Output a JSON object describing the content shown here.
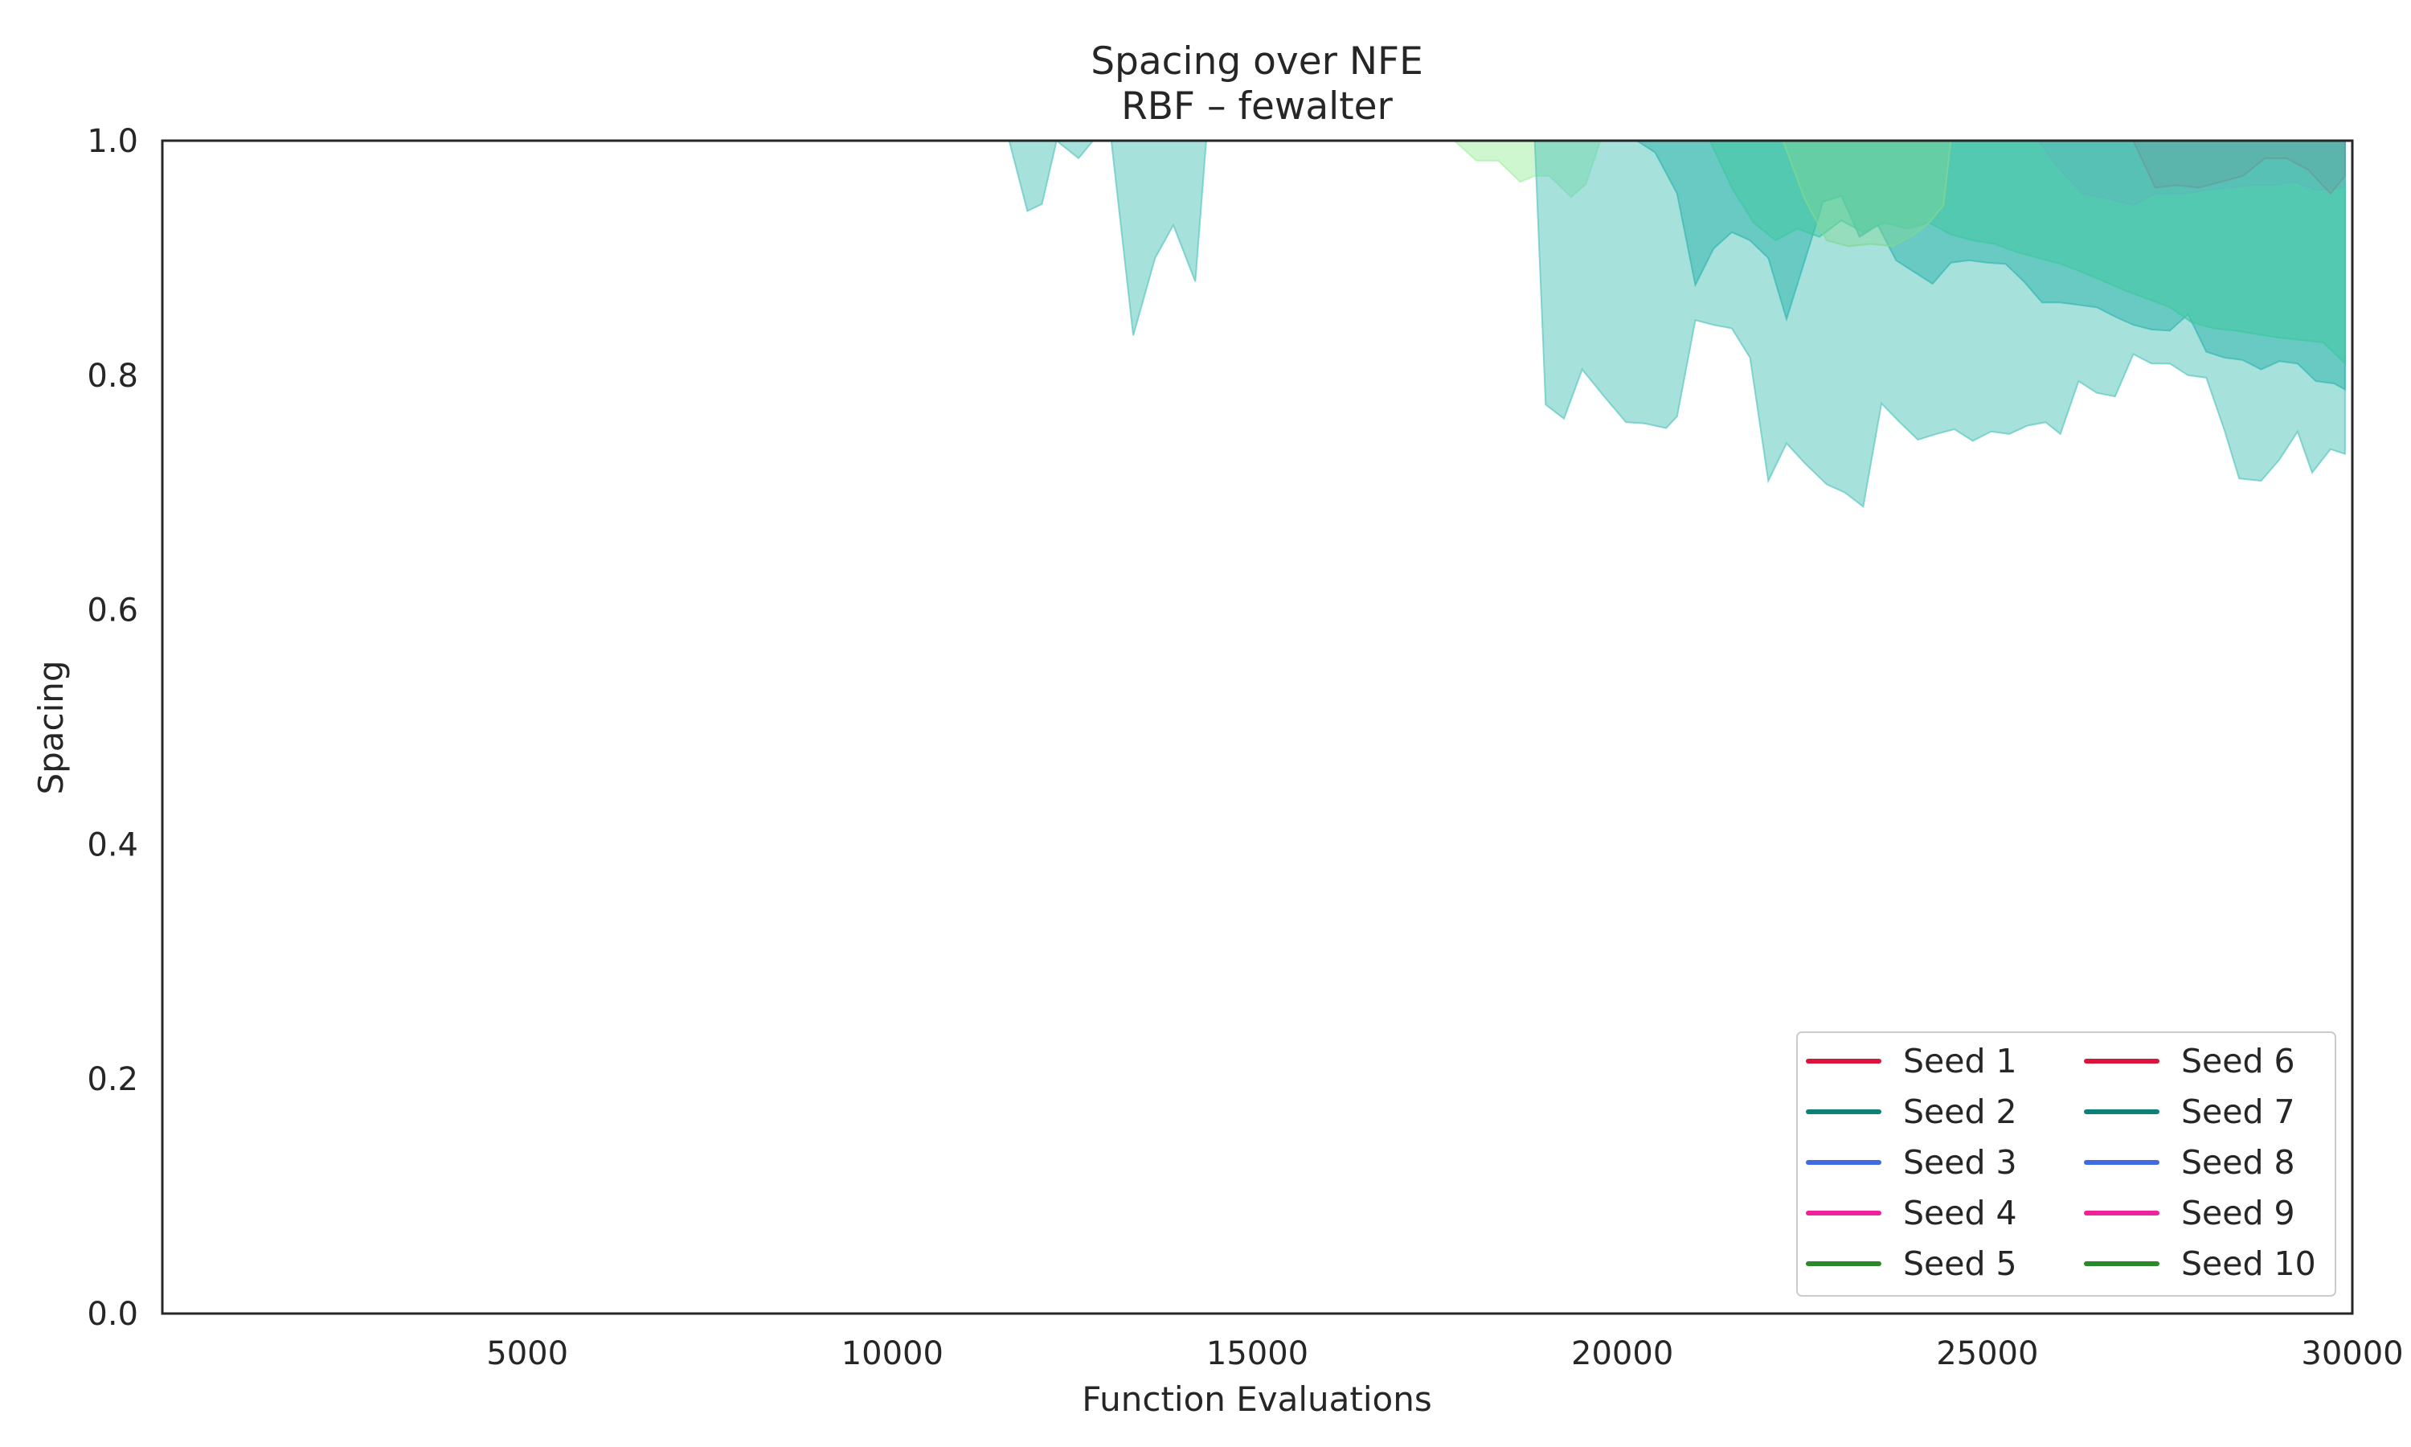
{
  "chart_data": {
    "type": "area",
    "title": "Spacing over NFE",
    "subtitle": "RBF – fewalter",
    "xlabel": "Function Evaluations",
    "ylabel": "Spacing",
    "xlim": [
      0,
      30000
    ],
    "ylim": [
      0.0,
      1.0
    ],
    "xticks": [
      5000,
      10000,
      15000,
      20000,
      25000,
      30000
    ],
    "yticks": [
      0.0,
      0.2,
      0.4,
      0.6,
      0.8,
      1.0
    ],
    "xtick_labels": [
      "5000",
      "10000",
      "15000",
      "20000",
      "25000",
      "30000"
    ],
    "ytick_labels": [
      "0.0",
      "0.2",
      "0.4",
      "0.6",
      "0.8",
      "1.0"
    ],
    "grid": false,
    "legend_position": "lower-right",
    "legend_columns": 2,
    "legend": [
      {
        "name": "Seed 1",
        "color": "#dc143c"
      },
      {
        "name": "Seed 2",
        "color": "#0f7f7a"
      },
      {
        "name": "Seed 3",
        "color": "#4169e1"
      },
      {
        "name": "Seed 4",
        "color": "#f0229a"
      },
      {
        "name": "Seed 5",
        "color": "#2a8a2a"
      },
      {
        "name": "Seed 6",
        "color": "#dc143c"
      },
      {
        "name": "Seed 7",
        "color": "#0f7f7a"
      },
      {
        "name": "Seed 8",
        "color": "#4169e1"
      },
      {
        "name": "Seed 9",
        "color": "#f0229a"
      },
      {
        "name": "Seed 10",
        "color": "#2a8a2a"
      }
    ],
    "bands": [
      {
        "color": "#5cc8c0",
        "opacity": 0.55,
        "upper": 1.0,
        "lower_x": [
          11600,
          11850,
          12050,
          12250,
          12550,
          12750,
          13000,
          13300,
          13600,
          13850,
          14150,
          14300
        ],
        "lower_y": [
          1.0,
          0.94,
          0.946,
          1.0,
          0.985,
          1.0,
          1.0,
          0.834,
          0.9,
          0.928,
          0.88,
          1.0
        ]
      },
      {
        "color": "#a8f0a8",
        "opacity": 0.55,
        "upper": 1.0,
        "lower_x": [
          17700,
          18000,
          18300,
          18600,
          18800,
          19000,
          19300,
          19500,
          19700
        ],
        "lower_y": [
          1.0,
          0.983,
          0.983,
          0.965,
          0.97,
          0.97,
          0.952,
          0.963,
          1.0
        ]
      },
      {
        "color": "#5cc8c0",
        "opacity": 0.55,
        "upper": 1.0,
        "lower_x": [
          18800,
          18950,
          19200,
          19450,
          19750,
          20050,
          20300,
          20600,
          20750,
          21000,
          21250,
          21500,
          21750,
          22000,
          22250,
          22500,
          22800,
          23050,
          23300,
          23550,
          23800,
          24050,
          24300,
          24550,
          24800,
          25050,
          25300,
          25550,
          25800,
          26000,
          26250,
          26500,
          26750,
          27000,
          27250,
          27500,
          27750,
          28000,
          28250,
          28450,
          28750,
          29000,
          29250,
          29450,
          29700,
          29900
        ],
        "lower_y": [
          1.0,
          0.775,
          0.763,
          0.805,
          0.782,
          0.76,
          0.759,
          0.755,
          0.765,
          0.847,
          0.843,
          0.84,
          0.815,
          0.71,
          0.742,
          0.725,
          0.707,
          0.7,
          0.688,
          0.776,
          0.76,
          0.745,
          0.75,
          0.754,
          0.744,
          0.752,
          0.75,
          0.757,
          0.76,
          0.75,
          0.795,
          0.785,
          0.782,
          0.818,
          0.81,
          0.81,
          0.8,
          0.798,
          0.753,
          0.712,
          0.71,
          0.728,
          0.752,
          0.717,
          0.737,
          0.733
        ]
      },
      {
        "color": "#36b8b0",
        "opacity": 0.55,
        "upper": 1.0,
        "lower_x": [
          20000,
          20200,
          20450,
          20750,
          21000,
          21250,
          21500,
          21750,
          22000,
          22250,
          22500,
          22750,
          23000,
          23250,
          23500,
          23750,
          24000,
          24250,
          24500,
          24750,
          25000,
          25250,
          25500,
          25750,
          26000,
          26250,
          26500,
          26750,
          27000,
          27250,
          27500,
          27750,
          28000,
          28250,
          28500,
          28750,
          29000,
          29250,
          29500,
          29750,
          29900
        ],
        "lower_y": [
          1.0,
          1.0,
          0.99,
          0.955,
          0.877,
          0.908,
          0.922,
          0.915,
          0.9,
          0.848,
          0.898,
          0.948,
          0.953,
          0.918,
          0.928,
          0.898,
          0.888,
          0.878,
          0.896,
          0.898,
          0.896,
          0.895,
          0.88,
          0.862,
          0.862,
          0.86,
          0.858,
          0.85,
          0.843,
          0.839,
          0.838,
          0.852,
          0.82,
          0.815,
          0.813,
          0.805,
          0.812,
          0.81,
          0.795,
          0.793,
          0.788
        ]
      },
      {
        "color": "#40c8a0",
        "opacity": 0.5,
        "upper": 1.0,
        "lower_x": [
          21200,
          21500,
          21800,
          22100,
          22400,
          22700,
          23000,
          23300,
          23600,
          23900,
          24200,
          24500,
          24800,
          25100,
          25400,
          25700,
          26000,
          26300,
          26600,
          26900,
          27200,
          27500,
          27800,
          28100,
          28400,
          28700,
          29000,
          29300,
          29600,
          29900
        ],
        "lower_y": [
          1.0,
          0.96,
          0.93,
          0.915,
          0.925,
          0.918,
          0.932,
          0.922,
          0.93,
          0.925,
          0.93,
          0.92,
          0.915,
          0.912,
          0.905,
          0.9,
          0.895,
          0.888,
          0.88,
          0.872,
          0.865,
          0.858,
          0.845,
          0.84,
          0.838,
          0.835,
          0.832,
          0.83,
          0.828,
          0.81
        ]
      },
      {
        "color": "#80d890",
        "opacity": 0.4,
        "upper": 1.0,
        "lower_x": [
          22200,
          22500,
          22800,
          23100,
          23400,
          23700,
          24000,
          24200,
          24400,
          24500
        ],
        "lower_y": [
          1.0,
          0.95,
          0.915,
          0.91,
          0.912,
          0.91,
          0.92,
          0.93,
          0.945,
          1.0
        ]
      },
      {
        "color": "#5cb8b8",
        "opacity": 0.45,
        "upper": 1.0,
        "lower_x": [
          25700,
          26000,
          26300,
          26700,
          27000,
          27300,
          27700,
          28000,
          28300,
          28600,
          28900,
          29200,
          29500,
          29900
        ],
        "lower_y": [
          1.0,
          0.975,
          0.955,
          0.95,
          0.945,
          0.955,
          0.955,
          0.958,
          0.96,
          0.962,
          0.962,
          0.965,
          0.958,
          0.96
        ]
      },
      {
        "color": "#6a9a9a",
        "opacity": 0.3,
        "upper": 1.0,
        "lower_x": [
          27000,
          27300,
          27600,
          27900,
          28200,
          28500,
          28800,
          29100,
          29400,
          29700,
          29900
        ],
        "lower_y": [
          1.0,
          0.96,
          0.962,
          0.96,
          0.965,
          0.97,
          0.985,
          0.985,
          0.975,
          0.955,
          0.97
        ]
      }
    ]
  }
}
